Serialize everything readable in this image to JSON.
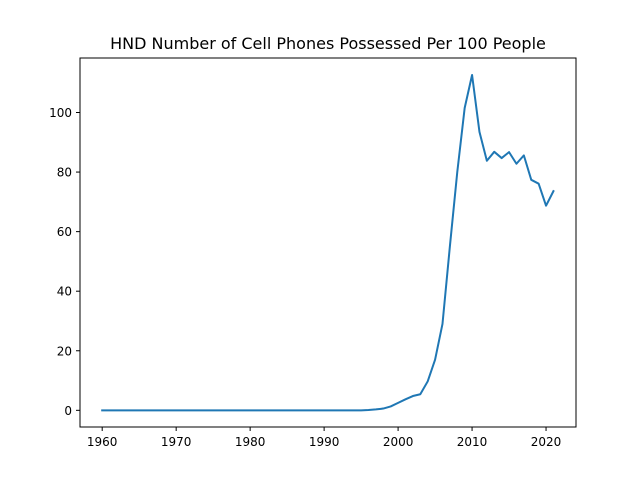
{
  "chart_data": {
    "type": "line",
    "title": "HND Number of Cell Phones Possessed Per 100 People",
    "xlabel": "",
    "ylabel": "",
    "xlim": [
      1957,
      2024.05
    ],
    "ylim": [
      -5.6,
      118.3
    ],
    "x_ticks": [
      1960,
      1970,
      1980,
      1990,
      2000,
      2010,
      2020
    ],
    "y_ticks": [
      0,
      20,
      40,
      60,
      80,
      100
    ],
    "grid": false,
    "legend": "none",
    "series": [
      {
        "color": "#1f77b4",
        "x": [
          1960,
          1961,
          1962,
          1963,
          1964,
          1965,
          1966,
          1967,
          1968,
          1969,
          1970,
          1971,
          1972,
          1973,
          1974,
          1975,
          1976,
          1977,
          1978,
          1979,
          1980,
          1981,
          1982,
          1983,
          1984,
          1985,
          1986,
          1987,
          1988,
          1989,
          1990,
          1991,
          1992,
          1993,
          1994,
          1995,
          1996,
          1997,
          1998,
          1999,
          2000,
          2001,
          2002,
          2003,
          2004,
          2005,
          2006,
          2007,
          2008,
          2009,
          2010,
          2011,
          2012,
          2013,
          2014,
          2015,
          2016,
          2017,
          2018,
          2019,
          2020,
          2021
        ],
        "y": [
          0,
          0,
          0,
          0,
          0,
          0,
          0,
          0,
          0,
          0,
          0,
          0,
          0,
          0,
          0,
          0,
          0,
          0,
          0,
          0,
          0,
          0,
          0,
          0,
          0,
          0,
          0,
          0,
          0,
          0,
          0,
          0,
          0,
          0,
          0,
          0,
          0.1,
          0.3,
          0.6,
          1.3,
          2.5,
          3.7,
          4.8,
          5.4,
          9.7,
          17.0,
          29.0,
          55.0,
          80.0,
          101.5,
          112.6,
          93.5,
          83.8,
          86.8,
          84.7,
          86.7,
          82.8,
          85.6,
          77.4,
          76.1,
          68.7,
          73.6
        ]
      }
    ]
  }
}
